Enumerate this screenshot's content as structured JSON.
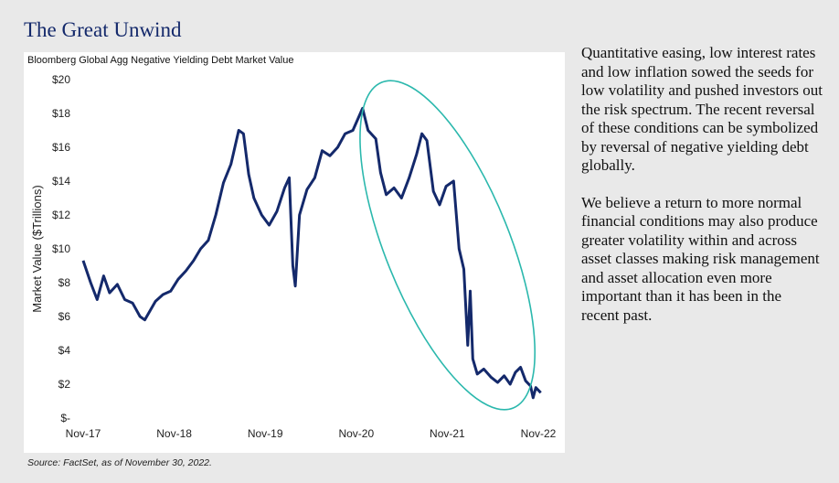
{
  "title": "The Great Unwind",
  "chart_data": {
    "type": "line",
    "title": "Bloomberg Global Agg Negative Yielding Debt Market Value",
    "ylabel": "Market Value ($Trillions)",
    "xlabel": "",
    "ylim": [
      0,
      20
    ],
    "xlim": [
      "2017-11",
      "2022-11"
    ],
    "grid": false,
    "x_ticks": [
      "Nov-17",
      "Nov-18",
      "Nov-19",
      "Nov-20",
      "Nov-21",
      "Nov-22"
    ],
    "y_ticks": [
      {
        "value": 20,
        "label": "$20"
      },
      {
        "value": 18,
        "label": "$18"
      },
      {
        "value": 16,
        "label": "$16"
      },
      {
        "value": 14,
        "label": "$14"
      },
      {
        "value": 12,
        "label": "$12"
      },
      {
        "value": 10,
        "label": "$10"
      },
      {
        "value": 8,
        "label": "$8"
      },
      {
        "value": 6,
        "label": "$6"
      },
      {
        "value": 4,
        "label": "$4"
      },
      {
        "value": 2,
        "label": "$2"
      },
      {
        "value": 0,
        "label": "$-"
      }
    ],
    "series": [
      {
        "color": "#14296b",
        "points": [
          [
            "2017-11-15",
            9.3
          ],
          [
            "2017-12-15",
            8.0
          ],
          [
            "2018-01-10",
            7.0
          ],
          [
            "2018-02-05",
            8.4
          ],
          [
            "2018-03-01",
            7.4
          ],
          [
            "2018-04-01",
            7.9
          ],
          [
            "2018-05-01",
            7.0
          ],
          [
            "2018-06-01",
            6.8
          ],
          [
            "2018-07-01",
            6.0
          ],
          [
            "2018-07-20",
            5.8
          ],
          [
            "2018-09-01",
            6.9
          ],
          [
            "2018-10-01",
            7.3
          ],
          [
            "2018-11-01",
            7.5
          ],
          [
            "2018-12-01",
            8.2
          ],
          [
            "2019-01-01",
            8.7
          ],
          [
            "2019-02-01",
            9.3
          ],
          [
            "2019-03-01",
            10.0
          ],
          [
            "2019-04-01",
            10.5
          ],
          [
            "2019-05-01",
            12.0
          ],
          [
            "2019-06-01",
            13.9
          ],
          [
            "2019-07-01",
            15.0
          ],
          [
            "2019-08-01",
            17.0
          ],
          [
            "2019-08-20",
            16.8
          ],
          [
            "2019-09-10",
            14.4
          ],
          [
            "2019-10-01",
            13.0
          ],
          [
            "2019-11-01",
            12.0
          ],
          [
            "2019-12-01",
            11.4
          ],
          [
            "2020-01-01",
            12.2
          ],
          [
            "2020-02-01",
            13.6
          ],
          [
            "2020-02-20",
            14.2
          ],
          [
            "2020-03-05",
            9.0
          ],
          [
            "2020-03-15",
            7.8
          ],
          [
            "2020-04-01",
            12.0
          ],
          [
            "2020-05-01",
            13.5
          ],
          [
            "2020-06-01",
            14.2
          ],
          [
            "2020-07-01",
            15.8
          ],
          [
            "2020-08-01",
            15.5
          ],
          [
            "2020-09-01",
            16.0
          ],
          [
            "2020-10-01",
            16.8
          ],
          [
            "2020-11-01",
            17.0
          ],
          [
            "2020-12-10",
            18.3
          ],
          [
            "2021-01-01",
            17.0
          ],
          [
            "2021-02-01",
            16.5
          ],
          [
            "2021-02-20",
            14.5
          ],
          [
            "2021-03-15",
            13.2
          ],
          [
            "2021-04-15",
            13.6
          ],
          [
            "2021-05-15",
            13.0
          ],
          [
            "2021-06-15",
            14.2
          ],
          [
            "2021-07-15",
            15.6
          ],
          [
            "2021-08-05",
            16.8
          ],
          [
            "2021-08-25",
            16.4
          ],
          [
            "2021-09-20",
            13.4
          ],
          [
            "2021-10-15",
            12.6
          ],
          [
            "2021-11-10",
            13.7
          ],
          [
            "2021-12-10",
            14.0
          ],
          [
            "2022-01-01",
            10.0
          ],
          [
            "2022-01-20",
            8.8
          ],
          [
            "2022-02-05",
            4.3
          ],
          [
            "2022-02-15",
            7.5
          ],
          [
            "2022-02-25",
            3.5
          ],
          [
            "2022-03-15",
            2.6
          ],
          [
            "2022-04-10",
            2.9
          ],
          [
            "2022-05-10",
            2.4
          ],
          [
            "2022-06-05",
            2.1
          ],
          [
            "2022-07-01",
            2.5
          ],
          [
            "2022-07-25",
            2.0
          ],
          [
            "2022-08-15",
            2.7
          ],
          [
            "2022-09-05",
            3.0
          ],
          [
            "2022-09-25",
            2.2
          ],
          [
            "2022-10-15",
            1.9
          ],
          [
            "2022-10-25",
            1.2
          ],
          [
            "2022-11-05",
            1.8
          ],
          [
            "2022-11-25",
            1.5
          ]
        ]
      }
    ],
    "annotations": [
      {
        "shape": "ellipse",
        "color": "#2bb8ad",
        "from": "2020-11-01",
        "to": "2022-11-30"
      }
    ]
  },
  "commentary": [
    "Quantitative easing, low interest rates and low inflation sowed the seeds for low volatility and pushed investors out the risk spectrum. The recent reversal of these conditions can be symbolized by reversal of negative yielding debt globally.",
    "We believe a return to more normal financial conditions may also produce greater volatility within and across asset classes making risk management and asset allocation even more important than it has been in the recent past."
  ],
  "source": "Source: FactSet, as of November 30, 2022."
}
